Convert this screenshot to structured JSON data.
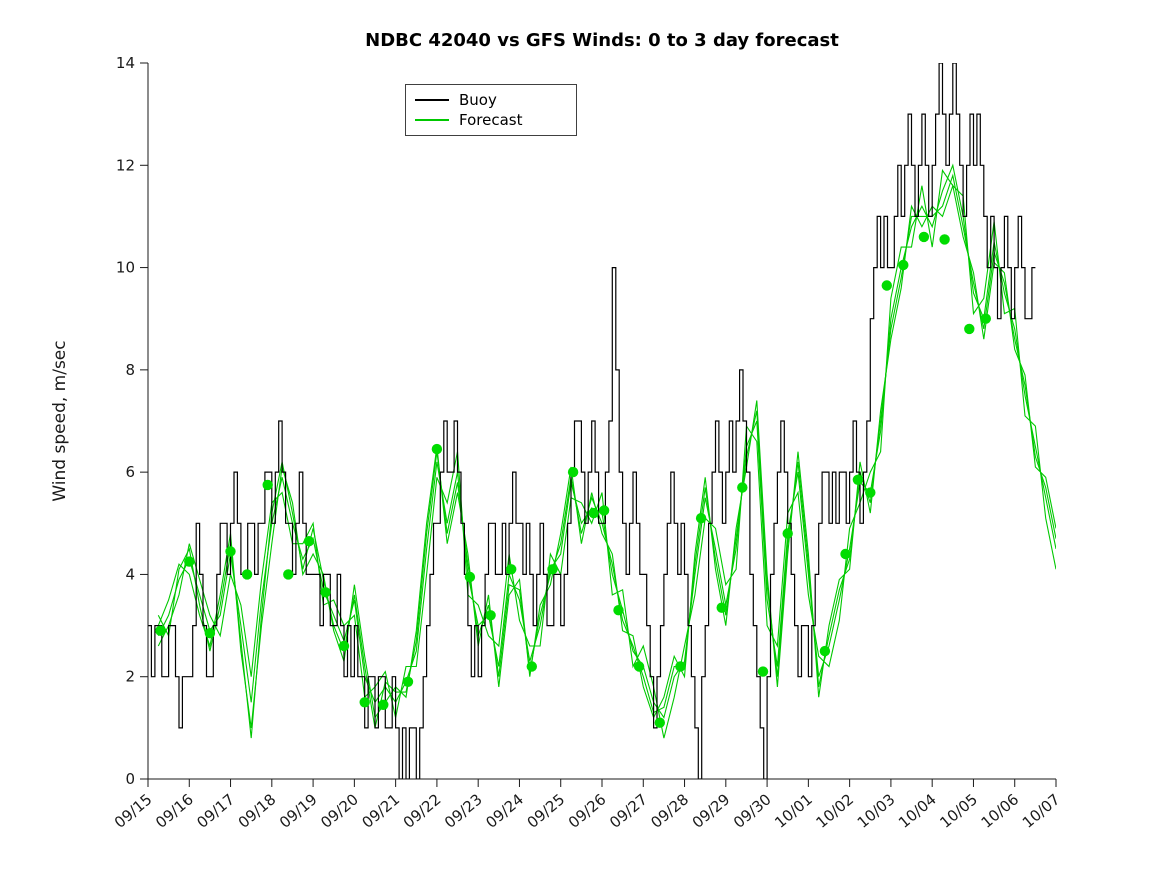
{
  "legend": {
    "buoy": "Buoy",
    "forecast": "Forecast"
  },
  "colors": {
    "buoy": "#000000",
    "forecast": "#00C800",
    "marker": "#00DC00",
    "axis": "#1a1a1a"
  },
  "chart_data": {
    "type": "line",
    "title": "NDBC 42040 vs GFS Winds: 0 to 3 day forecast",
    "xlabel": "",
    "ylabel": "Wind speed, m/sec",
    "ylim": [
      0,
      14
    ],
    "yticks": [
      0,
      2,
      4,
      6,
      8,
      10,
      12,
      14
    ],
    "x_days_range": [
      0,
      22
    ],
    "x_tick_labels": [
      "09/15",
      "09/16",
      "09/17",
      "09/18",
      "09/19",
      "09/20",
      "09/21",
      "09/22",
      "09/23",
      "09/24",
      "09/25",
      "09/26",
      "09/27",
      "09/28",
      "09/29",
      "09/30",
      "10/01",
      "10/02",
      "10/03",
      "10/04",
      "10/05",
      "10/06",
      "10/07"
    ],
    "legend_entries": [
      "Buoy",
      "Forecast"
    ],
    "grid": false,
    "buoy": {
      "t_start": 0,
      "t_step": 0.0833333,
      "step_plot": true,
      "values": [
        3,
        2,
        3,
        3,
        2,
        2,
        3,
        3,
        2,
        1,
        2,
        2,
        2,
        3,
        5,
        4,
        3,
        2,
        2,
        3,
        4,
        5,
        5,
        4,
        5,
        6,
        5,
        4,
        4,
        5,
        5,
        4,
        5,
        5,
        6,
        6,
        5,
        6,
        7,
        6,
        5,
        5,
        4,
        5,
        6,
        5,
        4,
        4,
        4,
        4,
        3,
        4,
        4,
        3,
        3,
        4,
        3,
        2,
        3,
        2,
        3,
        2,
        2,
        1,
        2,
        2,
        1,
        2,
        2,
        1,
        1,
        2,
        1,
        0,
        1,
        0,
        1,
        1,
        0,
        1,
        2,
        3,
        4,
        5,
        5,
        6,
        7,
        6,
        6,
        7,
        6,
        5,
        4,
        3,
        2,
        3,
        2,
        3,
        4,
        5,
        5,
        4,
        4,
        5,
        4,
        5,
        6,
        5,
        5,
        4,
        5,
        4,
        3,
        4,
        5,
        4,
        3,
        3,
        4,
        4,
        3,
        4,
        5,
        6,
        7,
        7,
        6,
        5,
        6,
        7,
        6,
        5,
        5,
        6,
        7,
        10,
        8,
        6,
        5,
        4,
        5,
        6,
        5,
        4,
        4,
        3,
        2,
        1,
        2,
        3,
        4,
        5,
        6,
        5,
        4,
        5,
        4,
        3,
        2,
        1,
        0,
        2,
        3,
        5,
        6,
        7,
        6,
        5,
        6,
        7,
        6,
        7,
        8,
        7,
        6,
        4,
        3,
        2,
        1,
        0,
        2,
        4,
        5,
        6,
        7,
        6,
        5,
        4,
        3,
        2,
        3,
        3,
        2,
        3,
        4,
        5,
        6,
        6,
        5,
        6,
        5,
        6,
        6,
        5,
        6,
        7,
        6,
        5,
        6,
        7,
        9,
        10,
        11,
        10,
        11,
        10,
        10,
        11,
        12,
        11,
        12,
        13,
        12,
        11,
        12,
        13,
        12,
        11,
        12,
        13,
        14,
        13,
        12,
        13,
        14,
        13,
        12,
        11,
        12,
        13,
        12,
        13,
        12,
        11,
        10,
        11,
        10,
        9,
        10,
        11,
        10,
        9,
        10,
        11,
        10,
        9,
        9,
        10,
        10
      ]
    },
    "forecast_markers": {
      "t": [
        0.3,
        1.0,
        1.5,
        2.0,
        2.4,
        2.9,
        3.4,
        3.9,
        4.3,
        4.75,
        5.25,
        5.7,
        6.3,
        7.0,
        7.8,
        8.3,
        8.8,
        9.3,
        9.8,
        10.3,
        10.8,
        11.05,
        11.4,
        11.9,
        12.4,
        12.9,
        13.4,
        13.9,
        14.4,
        14.9,
        15.5,
        16.4,
        16.9,
        17.2,
        17.5,
        17.9,
        18.3,
        18.8,
        19.3,
        19.9,
        20.3
      ],
      "v": [
        2.9,
        4.25,
        2.85,
        4.45,
        4.0,
        5.75,
        4.0,
        4.65,
        3.65,
        2.6,
        1.5,
        1.45,
        1.9,
        6.45,
        3.95,
        3.2,
        4.1,
        2.2,
        4.1,
        6.0,
        5.2,
        5.25,
        3.3,
        2.2,
        1.1,
        2.2,
        5.1,
        3.35,
        5.7,
        2.1,
        4.8,
        2.5,
        4.4,
        5.85,
        5.6,
        9.65,
        10.05,
        10.6,
        10.55,
        8.8,
        9.0
      ]
    },
    "forecast_lines": {
      "t_start": 0.25,
      "t_step": 0.25,
      "series": [
        [
          2.8,
          3.2,
          3.9,
          4.3,
          3.6,
          2.9,
          3.2,
          4.4,
          3.0,
          1.5,
          3.5,
          5.0,
          5.9,
          5.0,
          4.3,
          4.7,
          3.7,
          3.2,
          2.7,
          3.5,
          2.0,
          1.5,
          1.8,
          1.5,
          1.9,
          2.5,
          4.5,
          6.2,
          5.0,
          6.0,
          4.0,
          3.0,
          3.2,
          2.2,
          4.0,
          3.5,
          2.3,
          3.0,
          4.1,
          4.4,
          5.8,
          5.0,
          5.3,
          5.2,
          4.0,
          3.3,
          2.5,
          2.2,
          1.5,
          1.2,
          2.0,
          2.3,
          4.0,
          5.5,
          4.5,
          3.4,
          4.5,
          6.5,
          7.0,
          3.5,
          2.2,
          4.8,
          6.0,
          4.0,
          2.0,
          2.6,
          3.5,
          4.5,
          5.8,
          5.6,
          6.8,
          9.0,
          10.0,
          10.8,
          11.2,
          10.8,
          11.5,
          12.0,
          11.0,
          9.5,
          9.0,
          10.5,
          9.5,
          8.8,
          7.5,
          6.5,
          5.5,
          4.5
        ],
        [
          3.0,
          3.5,
          4.2,
          4.0,
          3.2,
          2.6,
          3.6,
          4.8,
          2.5,
          1.0,
          3.0,
          4.6,
          6.1,
          5.4,
          4.0,
          4.4,
          4.0,
          2.9,
          2.3,
          3.8,
          2.4,
          1.2,
          1.5,
          1.8,
          1.6,
          2.9,
          5.0,
          6.5,
          4.6,
          5.6,
          4.4,
          2.6,
          3.6,
          1.8,
          3.6,
          3.9,
          2.0,
          3.4,
          3.8,
          4.8,
          6.1,
          4.6,
          5.6,
          4.8,
          4.4,
          2.9,
          2.8,
          1.8,
          1.2,
          1.6,
          2.4,
          2.0,
          4.4,
          5.9,
          4.1,
          3.0,
          4.9,
          6.1,
          7.4,
          4.0,
          1.8,
          4.4,
          6.4,
          4.4,
          1.6,
          3.0,
          3.9,
          4.1,
          6.2,
          5.2,
          7.2,
          8.6,
          9.6,
          11.2,
          10.8,
          11.2,
          11.0,
          11.6,
          10.6,
          9.9,
          8.6,
          10.1,
          9.9,
          8.4,
          7.9,
          6.1,
          5.9,
          4.9
        ],
        [
          2.6,
          3.0,
          3.6,
          4.6,
          3.9,
          3.2,
          2.8,
          4.0,
          3.4,
          2.0,
          3.9,
          5.4,
          5.6,
          4.6,
          4.6,
          5.0,
          3.4,
          3.5,
          3.0,
          3.2,
          1.6,
          1.8,
          2.1,
          1.2,
          2.2,
          2.2,
          4.0,
          5.9,
          5.4,
          6.4,
          3.6,
          3.4,
          2.8,
          2.6,
          4.4,
          3.1,
          2.6,
          2.6,
          4.4,
          4.0,
          5.5,
          5.4,
          5.0,
          5.6,
          3.6,
          3.7,
          2.2,
          2.6,
          1.8,
          0.8,
          1.6,
          2.6,
          3.6,
          5.1,
          4.9,
          3.8,
          4.1,
          6.9,
          6.6,
          3.0,
          2.6,
          5.2,
          5.6,
          3.6,
          2.4,
          2.2,
          3.1,
          4.9,
          5.4,
          6.0,
          6.4,
          9.4,
          10.4,
          10.4,
          11.6,
          10.4,
          11.9,
          11.6,
          11.4,
          9.1,
          9.4,
          10.9,
          9.1,
          9.2,
          7.1,
          6.9,
          5.1,
          4.1
        ],
        [
          3.2,
          2.8,
          4.1,
          4.5,
          3.4,
          2.5,
          3.4,
          4.6,
          2.7,
          0.8,
          3.2,
          5.2,
          6.2,
          5.2,
          4.1,
          4.9,
          3.9,
          3.0,
          2.5,
          3.6,
          2.2,
          1.0,
          1.9,
          1.7,
          1.7,
          2.7,
          4.8,
          6.4,
          4.8,
          5.8,
          4.2,
          2.8,
          3.4,
          2.0,
          3.8,
          3.7,
          2.1,
          3.2,
          4.0,
          4.6,
          5.9,
          4.8,
          5.5,
          5.0,
          4.2,
          3.1,
          2.6,
          2.0,
          1.3,
          1.4,
          2.2,
          2.2,
          4.2,
          5.7,
          4.3,
          3.2,
          4.7,
          6.3,
          7.2,
          3.8,
          2.0,
          4.6,
          6.2,
          4.2,
          1.8,
          2.8,
          3.7,
          4.3,
          6.0,
          5.4,
          7.0,
          8.8,
          9.8,
          11.0,
          11.0,
          11.0,
          11.2,
          11.8,
          10.8,
          9.7,
          8.8,
          10.3,
          9.7,
          8.6,
          7.7,
          6.3,
          5.7,
          4.7
        ]
      ]
    }
  }
}
